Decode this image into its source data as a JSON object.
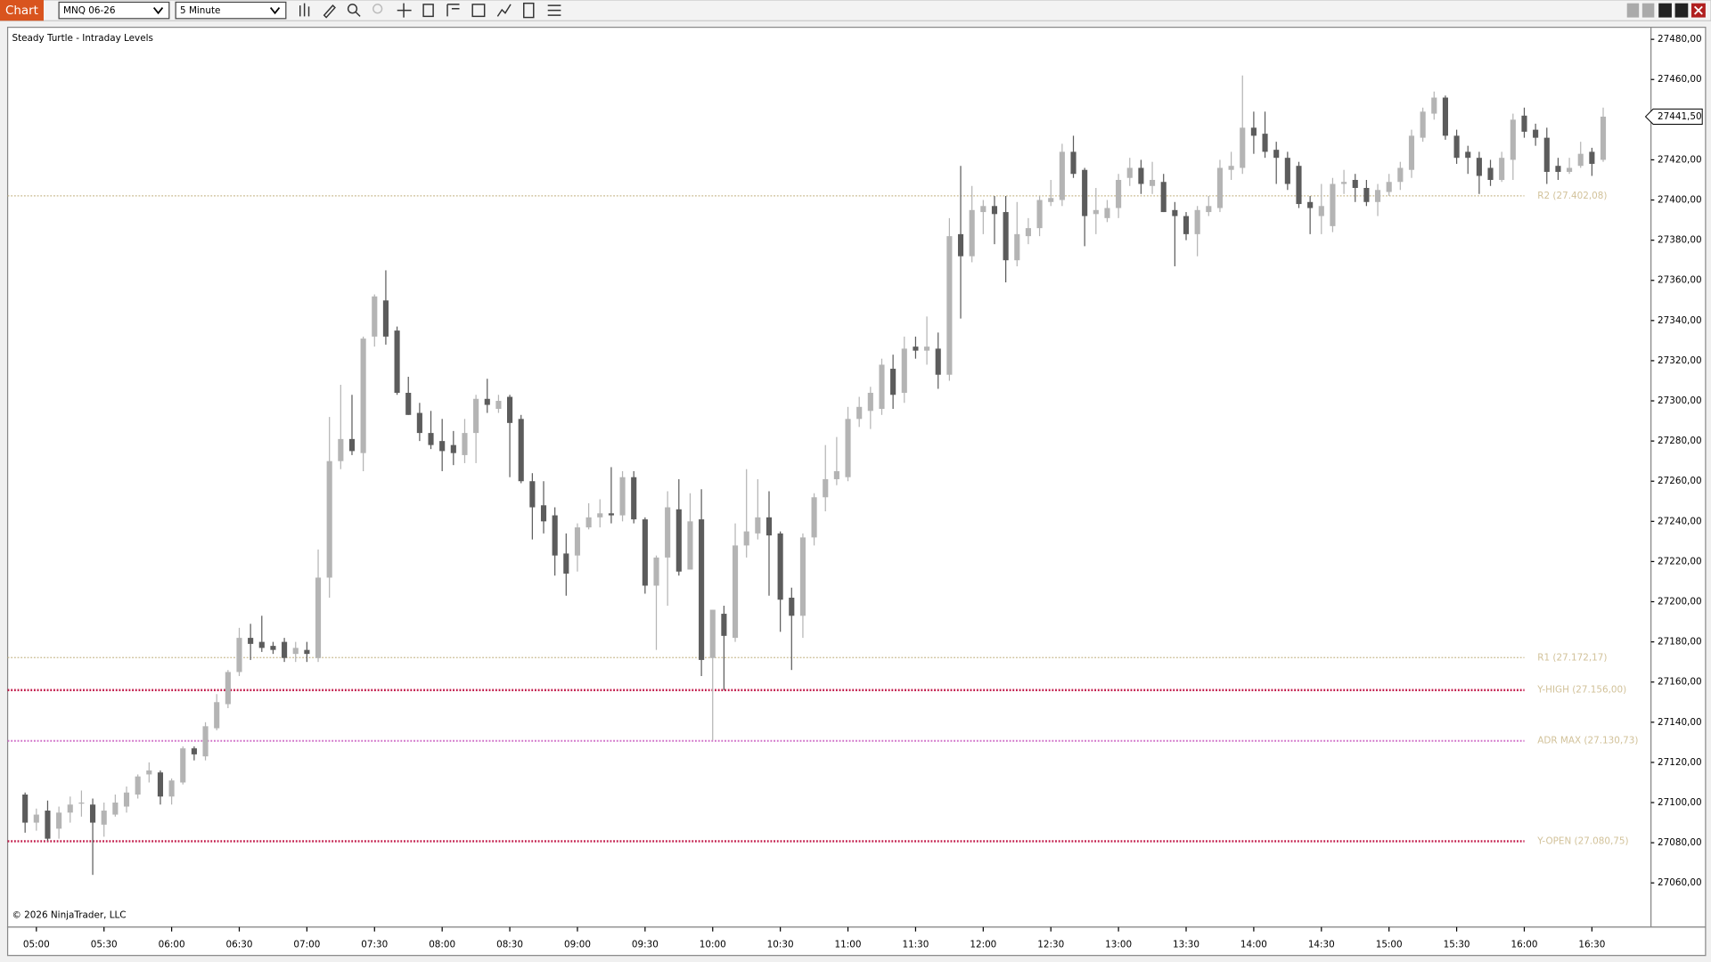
{
  "toolbar": {
    "tab": "Chart",
    "instrument": "MNQ 06-26",
    "interval": "5 Minute"
  },
  "chart_data": {
    "type": "candlestick",
    "title": "Steady Turtle - Intraday Levels",
    "footer": "© 2026 NinjaTrader, LLC",
    "categories": [
      null,
      "05:00",
      null,
      null,
      null,
      null,
      null,
      "05:30",
      null,
      null,
      null,
      null,
      null,
      "06:00",
      null,
      null,
      null,
      null,
      null,
      "06:30",
      null,
      null,
      null,
      null,
      null,
      "07:00",
      null,
      null,
      null,
      null,
      null,
      "07:30",
      null,
      null,
      null,
      null,
      null,
      "08:00",
      null,
      null,
      null,
      null,
      null,
      "08:30",
      null,
      null,
      null,
      null,
      null,
      "09:00",
      null,
      null,
      null,
      null,
      null,
      "09:30",
      null,
      null,
      null,
      null,
      null,
      "10:00",
      null,
      null,
      null,
      null,
      null,
      "10:30",
      null,
      null,
      null,
      null,
      null,
      "11:00",
      null,
      null,
      null,
      null,
      null,
      "11:30",
      null,
      null,
      null,
      null,
      null,
      "12:00",
      null,
      null,
      null,
      null,
      null,
      "12:30",
      null,
      null,
      null,
      null,
      null,
      "13:00",
      null,
      null,
      null,
      null,
      null,
      "13:30",
      null,
      null,
      null,
      null,
      null,
      "14:00",
      null,
      null,
      null,
      null,
      null,
      "14:30",
      null,
      null,
      null,
      null,
      null,
      "15:00",
      null,
      null,
      null,
      null,
      null,
      "15:30",
      null,
      null,
      null,
      null,
      null,
      "16:00",
      null,
      null,
      null,
      null,
      null,
      "16:30",
      null
    ],
    "open": [
      27104,
      27090,
      27096,
      27087,
      27095,
      27100,
      27099,
      27089,
      27094,
      27098,
      27104,
      27114,
      27115,
      27103,
      27110,
      27127,
      27123,
      27137,
      27149,
      27165,
      27182,
      27180,
      27178,
      27180,
      27174,
      27176,
      27172,
      27212,
      27270,
      27281,
      27274,
      27332,
      27350,
      27335,
      27304,
      27294,
      27284,
      27280,
      27278,
      27273,
      27284,
      27301,
      27296,
      27302,
      27291,
      27260,
      27248,
      27243,
      27224,
      27223,
      27237,
      27242,
      27244,
      27243,
      27262,
      27241,
      27208,
      27222,
      27246,
      27216,
      27241,
      27172,
      27194,
      27182,
      27228,
      27234,
      27242,
      27234,
      27202,
      27193,
      27232,
      27252,
      27261,
      27262,
      27291,
      27295,
      27296,
      27316,
      27304,
      27327,
      27325,
      27326,
      27313,
      27383,
      27372,
      27394,
      27397,
      27394,
      27370,
      27382,
      27386,
      27399,
      27400,
      27424,
      27415,
      27393,
      27391,
      27396,
      27411,
      27416,
      27407,
      27409,
      27395,
      27392,
      27383,
      27394,
      27396,
      27415,
      27416,
      27436,
      27433,
      27425,
      27421,
      27417,
      27399,
      27392,
      27387,
      27408,
      27410,
      27406,
      27399,
      27404,
      27409,
      27415,
      27431,
      27443,
      27451,
      27432,
      27424,
      27421,
      27416,
      27410,
      27420,
      27442,
      27435,
      27431,
      27417,
      27414,
      27417,
      27424,
      27420
    ],
    "high": [
      27105,
      27097,
      27101,
      27098,
      27103,
      27106,
      27102,
      27100,
      27104,
      27108,
      27114,
      27120,
      27116,
      27112,
      27128,
      27128,
      27140,
      27154,
      27166,
      27187,
      27189,
      27193,
      27180,
      27182,
      27180,
      27180,
      27226,
      27292,
      27308,
      27303,
      27332,
      27353,
      27365,
      27337,
      27312,
      27299,
      27295,
      27291,
      27285,
      27291,
      27303,
      27311,
      27303,
      27303,
      27293,
      27264,
      27260,
      27247,
      27234,
      27239,
      27249,
      27251,
      27267,
      27265,
      27265,
      27242,
      27223,
      27255,
      27261,
      27254,
      27256,
      27196,
      27198,
      27239,
      27266,
      27261,
      27255,
      27235,
      27207,
      27234,
      27254,
      27278,
      27282,
      27297,
      27302,
      27307,
      27321,
      27323,
      27332,
      27332,
      27342,
      27334,
      27391,
      27417,
      27407,
      27400,
      27402,
      27402,
      27399,
      27391,
      27402,
      27410,
      27428,
      27432,
      27416,
      27406,
      27400,
      27413,
      27421,
      27420,
      27419,
      27413,
      27399,
      27394,
      27397,
      27402,
      27420,
      27424,
      27462,
      27444,
      27444,
      27429,
      27424,
      27419,
      27402,
      27408,
      27411,
      27415,
      27413,
      27410,
      27408,
      27413,
      27419,
      27435,
      27446,
      27454,
      27452,
      27435,
      27427,
      27424,
      27420,
      27424,
      27443,
      27446,
      27438,
      27436,
      27421,
      27421,
      27429,
      27426,
      27446
    ],
    "low": [
      27085,
      27086,
      27081,
      27082,
      27090,
      27093,
      27064,
      27083,
      27093,
      27095,
      27102,
      27110,
      27099,
      27099,
      27109,
      27121,
      27121,
      27136,
      27147,
      27163,
      27171,
      27175,
      27174,
      27170,
      27170,
      27170,
      27170,
      27202,
      27266,
      27273,
      27265,
      27327,
      27328,
      27303,
      27293,
      27280,
      27276,
      27265,
      27268,
      27269,
      27269,
      27294,
      27294,
      27262,
      27259,
      27231,
      27234,
      27213,
      27203,
      27215,
      27236,
      27237,
      27239,
      27240,
      27239,
      27204,
      27176,
      27198,
      27213,
      27216,
      27163,
      27131,
      27156,
      27180,
      27222,
      27231,
      27203,
      27185,
      27166,
      27182,
      27228,
      27245,
      27258,
      27260,
      27287,
      27286,
      27293,
      27296,
      27299,
      27321,
      27318,
      27306,
      27310,
      27341,
      27369,
      27383,
      27378,
      27359,
      27367,
      27378,
      27382,
      27397,
      27397,
      27411,
      27377,
      27383,
      27389,
      27391,
      27407,
      27403,
      27403,
      27394,
      27367,
      27380,
      27372,
      27392,
      27394,
      27410,
      27413,
      27423,
      27421,
      27408,
      27405,
      27396,
      27383,
      27383,
      27384,
      27403,
      27399,
      27397,
      27392,
      27402,
      27405,
      27411,
      27429,
      27440,
      27430,
      27418,
      27413,
      27403,
      27407,
      27409,
      27410,
      27431,
      27427,
      27408,
      27410,
      27413,
      27416,
      27412,
      27419
    ],
    "close": [
      27090,
      27094,
      27082,
      27095,
      27099,
      27100,
      27090,
      27096,
      27100,
      27105,
      27113,
      27116,
      27103,
      27111,
      27127,
      27124,
      27138,
      27150,
      27165,
      27182,
      27179,
      27177,
      27176,
      27172,
      27177,
      27174,
      27212,
      27270,
      27281,
      27275,
      27331,
      27352,
      27332,
      27304,
      27293,
      27284,
      27278,
      27275,
      27274,
      27284,
      27301,
      27298,
      27300,
      27289,
      27260,
      27247,
      27240,
      27223,
      27214,
      27237,
      27242,
      27244,
      27243,
      27262,
      27241,
      27208,
      27222,
      27247,
      27215,
      27240,
      27171,
      27196,
      27183,
      27228,
      27235,
      27242,
      27233,
      27201,
      27193,
      27232,
      27252,
      27261,
      27265,
      27291,
      27297,
      27304,
      27318,
      27303,
      27326,
      27325,
      27327,
      27313,
      27382,
      27372,
      27395,
      27397,
      27393,
      27370,
      27383,
      27386,
      27400,
      27401,
      27424,
      27413,
      27392,
      27395,
      27396,
      27410,
      27416,
      27408,
      27410,
      27394,
      27392,
      27383,
      27395,
      27397,
      27416,
      27417,
      27436,
      27432,
      27424,
      27421,
      27408,
      27398,
      27396,
      27397,
      27408,
      27409,
      27406,
      27399,
      27405,
      27409,
      27416,
      27432,
      27444,
      27451,
      27432,
      27421,
      27421,
      27412,
      27410,
      27421,
      27440,
      27434,
      27431,
      27414,
      27414,
      27416,
      27423,
      27418,
      27441.5
    ],
    "up_color": "#b4b4b4",
    "down_color": "#5c5c5c",
    "ylim": [
      27038,
      27486
    ],
    "yticks": [
      {
        "value": 27060,
        "label": "27060,00"
      },
      {
        "value": 27080,
        "label": "27080,00"
      },
      {
        "value": 27100,
        "label": "27100,00"
      },
      {
        "value": 27120,
        "label": "27120,00"
      },
      {
        "value": 27140,
        "label": "27140,00"
      },
      {
        "value": 27160,
        "label": "27160,00"
      },
      {
        "value": 27180,
        "label": "27180,00"
      },
      {
        "value": 27200,
        "label": "27200,00"
      },
      {
        "value": 27220,
        "label": "27220,00"
      },
      {
        "value": 27240,
        "label": "27240,00"
      },
      {
        "value": 27260,
        "label": "27260,00"
      },
      {
        "value": 27280,
        "label": "27280,00"
      },
      {
        "value": 27300,
        "label": "27300,00"
      },
      {
        "value": 27320,
        "label": "27320,00"
      },
      {
        "value": 27340,
        "label": "27340,00"
      },
      {
        "value": 27360,
        "label": "27360,00"
      },
      {
        "value": 27380,
        "label": "27380,00"
      },
      {
        "value": 27400,
        "label": "27400,00"
      },
      {
        "value": 27420,
        "label": "27420,00"
      },
      {
        "value": 27440,
        "label": "27440,00"
      },
      {
        "value": 27460,
        "label": "27460,00"
      },
      {
        "value": 27480,
        "label": "27480,00"
      }
    ],
    "current_price": {
      "value": 27441.5,
      "label": "27441,50"
    },
    "level_label_color": "#d2c29a",
    "levels": [
      {
        "label": "R2 (27.402,08)",
        "value": 27402.08,
        "color": "#c8b98e",
        "line_width": 1
      },
      {
        "label": "R1 (27.172,17)",
        "value": 27172.17,
        "color": "#c8b98e",
        "line_width": 1
      },
      {
        "label": "Y-HIGH (27.156,00)",
        "value": 27156,
        "color": "#c21a4a",
        "line_width": 2
      },
      {
        "label": "ADR MAX (27.130,73)",
        "value": 27130.73,
        "color": "#d070c8",
        "line_width": 1.6
      },
      {
        "label": "Y-OPEN (27.080,75)",
        "value": 27080.75,
        "color": "#c21a4a",
        "line_width": 2
      }
    ]
  }
}
